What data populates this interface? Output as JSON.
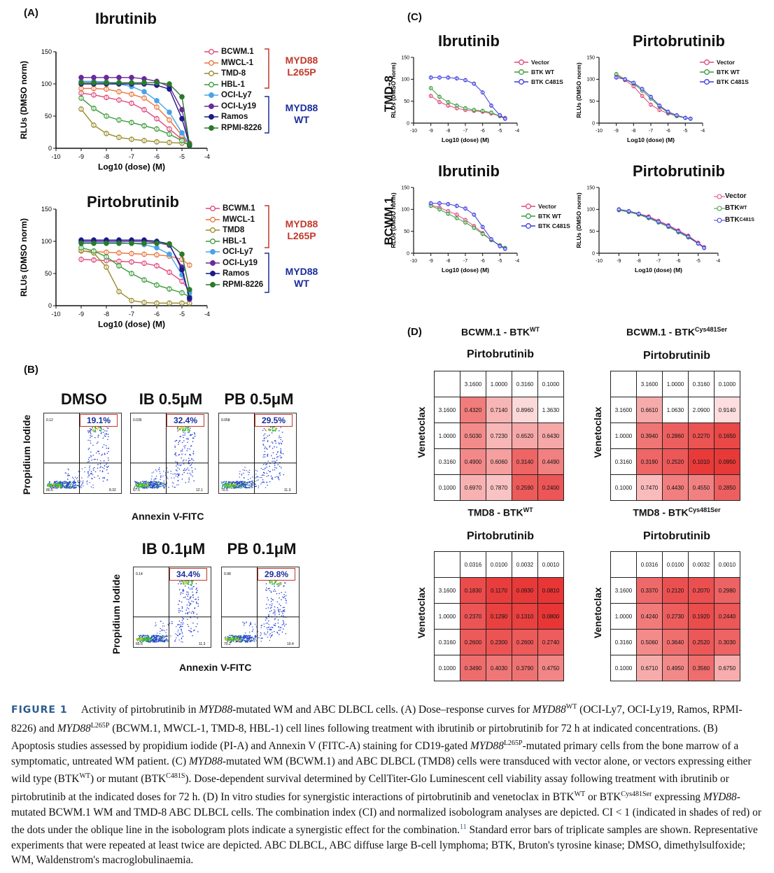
{
  "panels": {
    "A": {
      "label": "(A)",
      "x_label": "Log10 (dose) (M)",
      "y_label": "RLUs (DMSO norm)",
      "y_ticks": [
        "0",
        "50",
        "100",
        "150"
      ],
      "x_ticks": [
        "-10",
        "-9",
        "-8",
        "-7",
        "-6",
        "-5",
        "-4"
      ],
      "legend": [
        "BCWM.1",
        "MWCL-1",
        "TMD-8",
        "HBL-1",
        "OCI-Ly7",
        "OCI-Ly19",
        "Ramos",
        "RPMI-8226"
      ],
      "legend_bottom": [
        "BCWM.1",
        "MWCL-1",
        "TMD8",
        "HBL-1",
        "OCI-Ly7",
        "OCI-Ly19",
        "Ramos",
        "RPMI-8226"
      ],
      "group1": [
        "MYD88",
        "L265P"
      ],
      "group2": [
        "MYD88",
        "WT"
      ]
    },
    "B": {
      "label": "(B)",
      "y_label": "Propidium Iodide",
      "x_label": "Annexin V-FITC",
      "plots": [
        {
          "title": "DMSO",
          "pct": "19.1%",
          "ul": "0.12",
          "ll": "80.6",
          "lr": "8.32"
        },
        {
          "title": "IB 0.5μM",
          "pct": "32.4%",
          "ul": "0.035",
          "ll": "67.5",
          "lr": "12.1"
        },
        {
          "title": "PB 0.5μM",
          "pct": "29.5%",
          "ul": "0.058",
          "ll": "70.5",
          "lr": "11.3"
        },
        {
          "title": "IB 0.1μM",
          "pct": "34.4%",
          "ul": "0.14",
          "ll": "65.5",
          "lr": "11.3"
        },
        {
          "title": "PB 0.1μM",
          "pct": "29.8%",
          "ul": "0.98",
          "ll": "70.2",
          "lr": "10.4"
        }
      ]
    },
    "C": {
      "label": "(C)",
      "x_label": "Log10 (dose) (M)",
      "y_label": "RLUs (DMSO norm)",
      "row_labels": [
        "TMD-8",
        "BCWM.1"
      ],
      "legend": [
        "Vector",
        "BTK WT",
        "BTK C481S"
      ],
      "legend_sup": {
        "base": "BTK",
        "wt": "WT",
        "mut": "C481S"
      },
      "y_ticks": [
        "0",
        "50",
        "100",
        "150"
      ],
      "x_ticks": [
        "-10",
        "-9",
        "-8",
        "-7",
        "-6",
        "-5",
        "-4"
      ]
    },
    "D": {
      "label": "(D)",
      "col_drug": "Pirtobrutinib",
      "row_drug": "Venetoclax",
      "tables": [
        {
          "title": "BCWM.1 - BTK",
          "sup": "WT",
          "cols": [
            "3.1600",
            "1.0000",
            "0.3160",
            "0.1000"
          ],
          "rows": [
            "3.1600",
            "1.0000",
            "0.3160",
            "0.1000"
          ],
          "values": [
            [
              "0.4320",
              "0.7140",
              "0.8960",
              "1.3630"
            ],
            [
              "0.5030",
              "0.7230",
              "0.6520",
              "0.6430"
            ],
            [
              "0.4900",
              "0.6060",
              "0.3140",
              "0.4490"
            ],
            [
              "0.6970",
              "0.7870",
              "0.2590",
              "0.2400"
            ]
          ]
        },
        {
          "title": "BCWM.1 - BTK",
          "sup": "Cys481Ser",
          "cols": [
            "3.1600",
            "1.0000",
            "0.3160",
            "0.1000"
          ],
          "rows": [
            "3.1600",
            "1.0000",
            "0.3160",
            "0.1000"
          ],
          "values": [
            [
              "0.6610",
              "1.0630",
              "2.0900",
              "0.9140"
            ],
            [
              "0.3940",
              "0.2860",
              "0.2270",
              "0.1650"
            ],
            [
              "0.3190",
              "0.2520",
              "0.1010",
              "0.0950"
            ],
            [
              "0.7470",
              "0.4430",
              "0.4550",
              "0.2850"
            ]
          ]
        },
        {
          "title": "TMD8 - BTK",
          "sup": "WT",
          "cols": [
            "0.0316",
            "0.0100",
            "0.0032",
            "0.0010"
          ],
          "rows": [
            "3.1600",
            "1.0000",
            "0.3160",
            "0.1000"
          ],
          "values": [
            [
              "0.1830",
              "0.1170",
              "0.0930",
              "0.0810"
            ],
            [
              "0.2370",
              "0.1290",
              "0.1310",
              "0.0800"
            ],
            [
              "0.2600",
              "0.2300",
              "0.2600",
              "0.2740"
            ],
            [
              "0.3490",
              "0.4030",
              "0.3790",
              "0.4750"
            ]
          ]
        },
        {
          "title": "TMD8 - BTK",
          "sup": "Cys481Ser",
          "cols": [
            "0.0316",
            "0.0100",
            "0.0032",
            "0.0010"
          ],
          "rows": [
            "3.1600",
            "1.0000",
            "0.3160",
            "0.1000"
          ],
          "values": [
            [
              "0.3370",
              "0.2120",
              "0.2070",
              "0.2980"
            ],
            [
              "0.4240",
              "0.2730",
              "0.1920",
              "0.2440"
            ],
            [
              "0.5060",
              "0.3640",
              "0.2520",
              "0.3030"
            ],
            [
              "0.6710",
              "0.4950",
              "0.3560",
              "0.6750"
            ]
          ]
        }
      ]
    }
  },
  "chart_data": [
    {
      "type": "line",
      "title": "Ibrutinib",
      "x": [
        -9,
        -8.5,
        -8,
        -7.5,
        -7,
        -6.5,
        -6,
        -5.5,
        -5,
        -4.7
      ],
      "ylim": [
        0,
        150
      ],
      "xlim": [
        -10,
        -4
      ],
      "series": [
        {
          "name": "BCWM.1",
          "values": [
            86,
            83,
            79,
            75,
            70,
            60,
            46,
            30,
            14,
            8
          ]
        },
        {
          "name": "MWCL-1",
          "values": [
            93,
            93,
            92,
            88,
            84,
            78,
            64,
            44,
            20,
            6
          ]
        },
        {
          "name": "TMD-8",
          "values": [
            61,
            36,
            23,
            17,
            14,
            12,
            10,
            9,
            8,
            7
          ]
        },
        {
          "name": "HBL-1",
          "values": [
            78,
            62,
            50,
            44,
            40,
            35,
            30,
            22,
            12,
            4
          ]
        },
        {
          "name": "OCI-Ly7",
          "values": [
            104,
            104,
            103,
            100,
            96,
            88,
            74,
            56,
            24,
            6
          ]
        },
        {
          "name": "OCI-Ly19",
          "values": [
            110,
            110,
            110,
            110,
            110,
            108,
            104,
            96,
            60,
            6
          ]
        },
        {
          "name": "Ramos",
          "values": [
            100,
            100,
            100,
            100,
            100,
            100,
            98,
            92,
            46,
            5
          ]
        },
        {
          "name": "RPMI-8226",
          "values": [
            102,
            102,
            102,
            102,
            102,
            102,
            102,
            100,
            80,
            6
          ]
        }
      ]
    },
    {
      "type": "line",
      "title": "Pirtobrutinib",
      "x": [
        -9,
        -8.5,
        -8,
        -7.5,
        -7,
        -6.5,
        -6,
        -5.5,
        -5,
        -4.7
      ],
      "ylim": [
        0,
        150
      ],
      "xlim": [
        -10,
        -4
      ],
      "series": [
        {
          "name": "BCWM.1",
          "values": [
            72,
            71,
            70,
            69,
            68,
            66,
            62,
            52,
            38,
            24
          ]
        },
        {
          "name": "MWCL-1",
          "values": [
            85,
            84,
            83,
            82,
            81,
            80,
            79,
            77,
            72,
            63
          ]
        },
        {
          "name": "TMD8",
          "values": [
            86,
            82,
            60,
            22,
            8,
            5,
            4,
            4,
            4,
            4
          ]
        },
        {
          "name": "HBL-1",
          "values": [
            90,
            85,
            76,
            62,
            50,
            40,
            32,
            26,
            20,
            14
          ]
        },
        {
          "name": "OCI-Ly7",
          "values": [
            98,
            98,
            98,
            98,
            97,
            95,
            90,
            80,
            48,
            20
          ]
        },
        {
          "name": "OCI-Ly19",
          "values": [
            100,
            100,
            100,
            100,
            100,
            100,
            98,
            94,
            60,
            10
          ]
        },
        {
          "name": "Ramos",
          "values": [
            102,
            102,
            102,
            102,
            102,
            102,
            100,
            96,
            56,
            12
          ]
        },
        {
          "name": "RPMI-8226",
          "values": [
            97,
            97,
            97,
            97,
            97,
            97,
            97,
            96,
            80,
            25
          ]
        }
      ]
    },
    {
      "type": "line",
      "title": "Ibrutinib",
      "x": [
        -9,
        -8.5,
        -8,
        -7.5,
        -7,
        -6.5,
        -6,
        -5.5,
        -5,
        -4.7
      ],
      "ylim": [
        0,
        150
      ],
      "xlim": [
        -10,
        -4
      ],
      "series": [
        {
          "name": "Vector",
          "values": [
            62,
            48,
            40,
            34,
            30,
            28,
            26,
            22,
            16,
            12
          ]
        },
        {
          "name": "BTK WT",
          "values": [
            80,
            60,
            48,
            40,
            34,
            30,
            28,
            24,
            16,
            10
          ]
        },
        {
          "name": "BTK C481S",
          "values": [
            104,
            104,
            104,
            102,
            98,
            90,
            70,
            40,
            18,
            10
          ]
        }
      ]
    },
    {
      "type": "line",
      "title": "Pirtobrutinib",
      "x": [
        -9,
        -8.5,
        -8,
        -7.5,
        -7,
        -6.5,
        -6,
        -5.5,
        -5,
        -4.7
      ],
      "ylim": [
        0,
        150
      ],
      "xlim": [
        -10,
        -4
      ],
      "series": [
        {
          "name": "Vector",
          "values": [
            110,
            98,
            84,
            62,
            42,
            30,
            22,
            16,
            12,
            10
          ]
        },
        {
          "name": "BTK WT",
          "values": [
            112,
            100,
            90,
            74,
            56,
            38,
            24,
            16,
            12,
            10
          ]
        },
        {
          "name": "BTK C481S",
          "values": [
            104,
            100,
            92,
            78,
            60,
            40,
            26,
            18,
            12,
            10
          ]
        }
      ]
    },
    {
      "type": "line",
      "title": "Ibrutinib",
      "x": [
        -9,
        -8.5,
        -8,
        -7.5,
        -7,
        -6.5,
        -6,
        -5.5,
        -5,
        -4.7
      ],
      "ylim": [
        0,
        150
      ],
      "xlim": [
        -10,
        -4
      ],
      "series": [
        {
          "name": "Vector",
          "values": [
            110,
            104,
            96,
            88,
            76,
            62,
            46,
            30,
            18,
            12
          ]
        },
        {
          "name": "BTK WT",
          "values": [
            108,
            100,
            90,
            80,
            70,
            58,
            44,
            30,
            18,
            12
          ]
        },
        {
          "name": "BTK C481S",
          "values": [
            114,
            114,
            112,
            108,
            102,
            88,
            60,
            32,
            16,
            10
          ]
        }
      ]
    },
    {
      "type": "line",
      "title": "Pirtobrutinib",
      "x": [
        -9,
        -8.5,
        -8,
        -7.5,
        -7,
        -6.5,
        -6,
        -5.5,
        -5,
        -4.7
      ],
      "ylim": [
        0,
        150
      ],
      "xlim": [
        -10,
        -4
      ],
      "series": [
        {
          "name": "Vector",
          "values": [
            100,
            96,
            90,
            84,
            74,
            64,
            52,
            40,
            24,
            14
          ]
        },
        {
          "name": "BTK",
          "values": [
            98,
            94,
            88,
            80,
            70,
            60,
            48,
            36,
            22,
            12
          ]
        },
        {
          "name": "BTK",
          "values": [
            100,
            96,
            90,
            82,
            72,
            62,
            50,
            38,
            22,
            12
          ]
        }
      ]
    }
  ],
  "caption": {
    "fig_label": "FIGURE 1",
    "t1": "Activity of pirtobrutinib in ",
    "t1i": "MYD88",
    "t2": "-mutated WM and ABC DLBCL cells. (A) Dose–response curves for ",
    "t2i": "MYD88",
    "t2s": "WT",
    "t3": " (OCI-Ly7, OCI-Ly19, Ramos, RPMI-8226) and ",
    "t3i": "MYD88",
    "t3s": "L265P",
    "t4": " (BCWM.1, MWCL-1, TMD-8, HBL-1) cell lines following treatment with ibrutinib or pirtobrutinib for 72 h at indicated concentrations. (B) Apoptosis studies assessed by propidium iodide (PI-A) and Annexin V (FITC-A) staining for CD19-gated ",
    "t4i": "MYD88",
    "t4s": "L265P",
    "t5": "-mutated primary cells from the bone marrow of a symptomatic, untreated WM patient. (C) ",
    "t5i": "MYD88",
    "t6": "-mutated WM (BCWM.1) and ABC DLBCL (TMD8) cells were transduced with vector alone, or vectors expressing either wild type (BTK",
    "t6s": "WT",
    "t7": ") or mutant (BTK",
    "t7s": "C481S",
    "t8": "). Dose-dependent survival determined by CellTiter-Glo Luminescent cell viability assay following treatment with ibrutinib or pirtobrutinib at the indicated doses for 72 h. (D) In vitro studies for synergistic interactions of pirtobrutinib and venetoclax in BTK",
    "t8s": "WT",
    "t9": " or BTK",
    "t9s": "Cys481Ser",
    "t10": " expressing ",
    "t10i": "MYD88",
    "t11": "-mutated BCWM.1 WM and TMD-8 ABC DLBCL cells. The combination index (CI) and normalized isobologram analyses are depicted. CI < 1 (indicated in shades of red) or the dots under the oblique line in the isobologram plots indicate a synergistic effect for the combination.",
    "t11s": "11",
    "t12": " Standard error bars of triplicate samples are shown. Representative experiments that were repeated at least twice are depicted. ABC DLBCL, ABC diffuse large B-cell lymphoma; BTK, Bruton's tyrosine kinase; DMSO, dimethylsulfoxide; WM, Waldenstrom's macroglobulinaemia."
  },
  "colors": {
    "BCWM.1": "#e0457b",
    "MWCL-1": "#e8733a",
    "TMD-8": "#9a8a2a",
    "HBL-1": "#3a9a3a",
    "OCI-Ly7": "#4aa3e8",
    "OCI-Ly19": "#6a2a9a",
    "Ramos": "#1a1a8a",
    "RPMI-8226": "#2a7a2a",
    "group1": "#c0392b",
    "group2": "#1a2e9c",
    "Vector": "#e0457b",
    "BTK WT": "#3a9a3a",
    "BTK C481S": "#3a3ae0"
  }
}
